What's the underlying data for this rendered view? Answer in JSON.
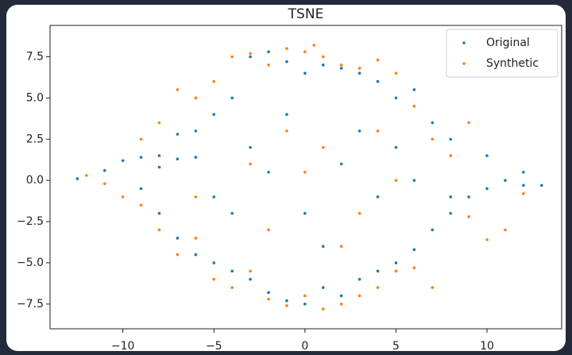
{
  "chart_data": {
    "type": "scatter",
    "title": "TSNE",
    "xlim": [
      -14,
      14.1
    ],
    "ylim": [
      -9.0,
      9.4
    ],
    "xticks": [
      {
        "value": -10,
        "label": "−10"
      },
      {
        "value": -5,
        "label": "−5"
      },
      0,
      5,
      10
    ],
    "yticks": [
      {
        "value": -7.5,
        "label": "−7.5"
      },
      {
        "value": -5,
        "label": "−5.0"
      },
      {
        "value": -2.5,
        "label": "−2.5"
      },
      {
        "value": 0,
        "label": "0.0"
      },
      2.5,
      {
        "value": 5,
        "label": "5.0"
      },
      7.5
    ],
    "legend": "upper right",
    "series": [
      {
        "name": "Original",
        "color": "#1f77b4",
        "x": [
          -12.5,
          -11,
          -10,
          -9,
          -8,
          -7,
          -6,
          -9,
          -8,
          -7,
          -6,
          -5,
          -4,
          -3,
          -2,
          -1,
          0,
          1,
          2,
          3,
          4,
          5,
          6,
          7,
          8,
          9,
          10,
          11,
          12,
          13,
          12,
          10,
          8,
          7,
          6,
          5,
          4,
          3,
          2,
          1,
          0,
          -1,
          -2,
          -3,
          -4,
          -5,
          -6,
          -7,
          -3,
          -2,
          0,
          2,
          4,
          -4,
          3,
          -1,
          1,
          5,
          -5,
          6,
          8,
          -8
        ],
        "values": [
          0.1,
          0.6,
          1.2,
          1.4,
          1.5,
          1.3,
          1.4,
          -0.5,
          -2,
          -3.5,
          -4.5,
          -5,
          -5.5,
          -6,
          -6.8,
          -7.3,
          -7.5,
          -6.5,
          -7,
          -6,
          -5.5,
          -5,
          -4.2,
          -3,
          -2,
          -1,
          -0.5,
          0,
          -0.3,
          -0.3,
          0.5,
          1.5,
          2.5,
          3.5,
          5.5,
          5,
          6,
          6.5,
          6.8,
          7,
          6.5,
          7.2,
          7.8,
          7.5,
          5,
          4,
          3,
          2.8,
          2,
          0.5,
          -2,
          1,
          -1,
          -2,
          3,
          4,
          -4,
          2,
          -1,
          0,
          -1,
          0.8
        ]
      },
      {
        "name": "Synthetic",
        "color": "#ff7f0e",
        "x": [
          -12,
          -11,
          -10,
          -9,
          -8,
          -7,
          -6,
          -5,
          -4,
          -3,
          -2,
          -1,
          0,
          0.5,
          1,
          2,
          3,
          4,
          5,
          6,
          7,
          8,
          9,
          10,
          11,
          12,
          9,
          -9,
          -8,
          -7,
          -6,
          -5,
          -4,
          -3,
          -2,
          -1,
          0,
          1,
          2,
          3,
          4,
          5,
          6,
          7,
          -3,
          -1,
          1,
          3,
          -2,
          0,
          4,
          -6,
          2,
          5
        ],
        "values": [
          0.3,
          -0.2,
          -1,
          2.5,
          3.5,
          5.5,
          5,
          6,
          7.5,
          7.7,
          7,
          8,
          7.8,
          8.2,
          7.5,
          7,
          6.8,
          7.3,
          6.5,
          4.5,
          2.5,
          1.5,
          -2.2,
          -3.6,
          -3,
          -0.8,
          3.5,
          -1.5,
          -3,
          -4.5,
          -3.5,
          -6,
          -6.5,
          -5.5,
          -7.2,
          -7.6,
          -7,
          -7.8,
          -7.5,
          -7,
          -6.5,
          -5.5,
          -5.3,
          -6.5,
          1,
          3,
          2,
          -2,
          -3,
          0.5,
          3,
          -1,
          -4,
          0
        ]
      }
    ]
  }
}
